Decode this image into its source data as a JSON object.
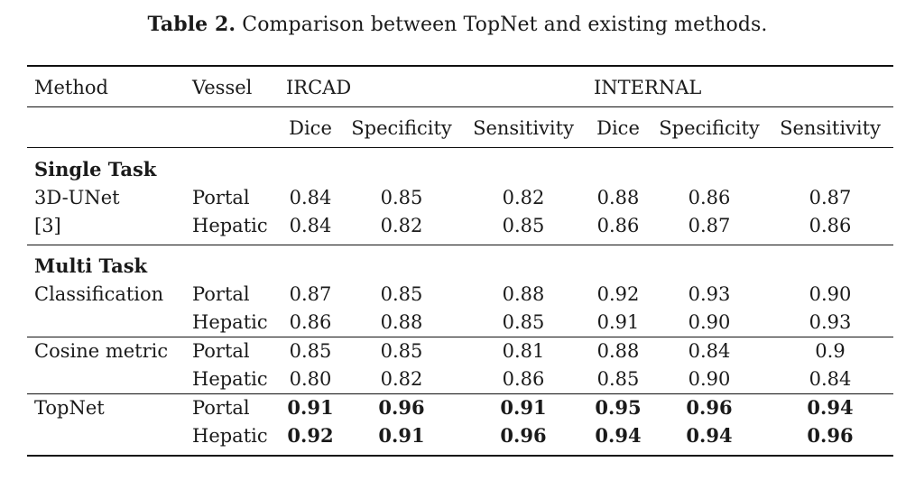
{
  "caption": {
    "lead": "Table 2.",
    "text": "Comparison between TopNet and existing methods."
  },
  "header": {
    "method": "Method",
    "vessel": "Vessel",
    "group1": "IRCAD",
    "group2": "INTERNAL",
    "metrics": [
      "Dice",
      "Specificity",
      "Sensitivity",
      "Dice",
      "Specificity",
      "Sensitivity"
    ]
  },
  "sections": {
    "single": "Single Task",
    "multi": "Multi Task"
  },
  "rows": [
    {
      "method": "3D-UNet",
      "vessel": "Portal",
      "values": [
        "0.84",
        "0.85",
        "0.82",
        "0.88",
        "0.86",
        "0.87"
      ],
      "bold": false
    },
    {
      "method": "[3]",
      "vessel": "Hepatic",
      "values": [
        "0.84",
        "0.82",
        "0.85",
        "0.86",
        "0.87",
        "0.86"
      ],
      "bold": false
    },
    {
      "method": "Classification",
      "vessel": "Portal",
      "values": [
        "0.87",
        "0.85",
        "0.88",
        "0.92",
        "0.93",
        "0.90"
      ],
      "bold": false
    },
    {
      "method": "",
      "vessel": "Hepatic",
      "values": [
        "0.86",
        "0.88",
        "0.85",
        "0.91",
        "0.90",
        "0.93"
      ],
      "bold": false
    },
    {
      "method": "Cosine metric",
      "vessel": "Portal",
      "values": [
        "0.85",
        "0.85",
        "0.81",
        "0.88",
        "0.84",
        "0.9"
      ],
      "bold": false
    },
    {
      "method": "",
      "vessel": "Hepatic",
      "values": [
        "0.80",
        "0.82",
        "0.86",
        "0.85",
        "0.90",
        "0.84"
      ],
      "bold": false
    },
    {
      "method": "TopNet",
      "vessel": "Portal",
      "values": [
        "0.91",
        "0.96",
        "0.91",
        "0.95",
        "0.96",
        "0.94"
      ],
      "bold": true
    },
    {
      "method": "",
      "vessel": "Hepatic",
      "values": [
        "0.92",
        "0.91",
        "0.96",
        "0.94",
        "0.94",
        "0.96"
      ],
      "bold": true
    }
  ]
}
